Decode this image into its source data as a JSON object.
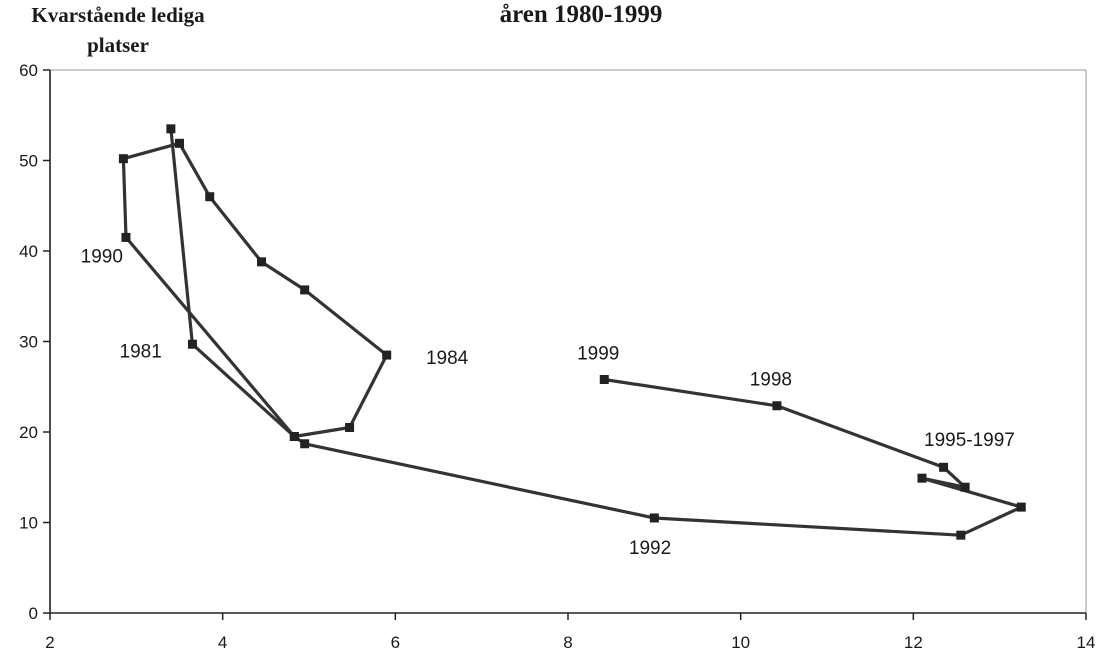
{
  "chart_data": {
    "type": "line",
    "title": "åren 1980-1999",
    "ylabel_line1": "Kvarstående lediga",
    "ylabel_line2": "platser",
    "xlabel": "",
    "xlim": [
      2,
      14
    ],
    "ylim": [
      0,
      60
    ],
    "xticks": [
      2,
      4,
      6,
      8,
      10,
      12,
      14
    ],
    "yticks": [
      0,
      10,
      20,
      30,
      40,
      50,
      60
    ],
    "grid": false,
    "series": [
      {
        "points": [
          {
            "x": 3.4,
            "y": 53.5
          },
          {
            "x": 3.65,
            "y": 29.7
          },
          {
            "x": 4.83,
            "y": 19.5
          },
          {
            "x": 5.47,
            "y": 20.5
          },
          {
            "x": 5.9,
            "y": 28.5
          },
          {
            "x": 4.95,
            "y": 35.7
          },
          {
            "x": 4.45,
            "y": 38.8
          },
          {
            "x": 3.85,
            "y": 46.0
          },
          {
            "x": 3.5,
            "y": 51.9
          },
          {
            "x": 2.85,
            "y": 50.2
          },
          {
            "x": 2.88,
            "y": 41.5
          },
          {
            "x": 4.83,
            "y": 19.5
          },
          {
            "x": 4.95,
            "y": 18.7
          },
          {
            "x": 9.0,
            "y": 10.5
          },
          {
            "x": 12.55,
            "y": 8.6
          },
          {
            "x": 13.25,
            "y": 11.7
          },
          {
            "x": 12.1,
            "y": 14.9
          },
          {
            "x": 12.6,
            "y": 13.9
          },
          {
            "x": 12.35,
            "y": 16.1
          },
          {
            "x": 10.42,
            "y": 22.9
          },
          {
            "x": 8.42,
            "y": 25.8
          }
        ]
      }
    ],
    "annotations": [
      {
        "text": "1990",
        "x": 2.6,
        "y": 39.5
      },
      {
        "text": "1981",
        "x": 3.05,
        "y": 29.0
      },
      {
        "text": "1984",
        "x": 6.6,
        "y": 28.3
      },
      {
        "text": "1999",
        "x": 8.35,
        "y": 28.8
      },
      {
        "text": "1998",
        "x": 10.35,
        "y": 25.9
      },
      {
        "text": "1995-1997",
        "x": 12.65,
        "y": 19.2
      },
      {
        "text": "1992",
        "x": 8.95,
        "y": 7.3
      }
    ]
  }
}
